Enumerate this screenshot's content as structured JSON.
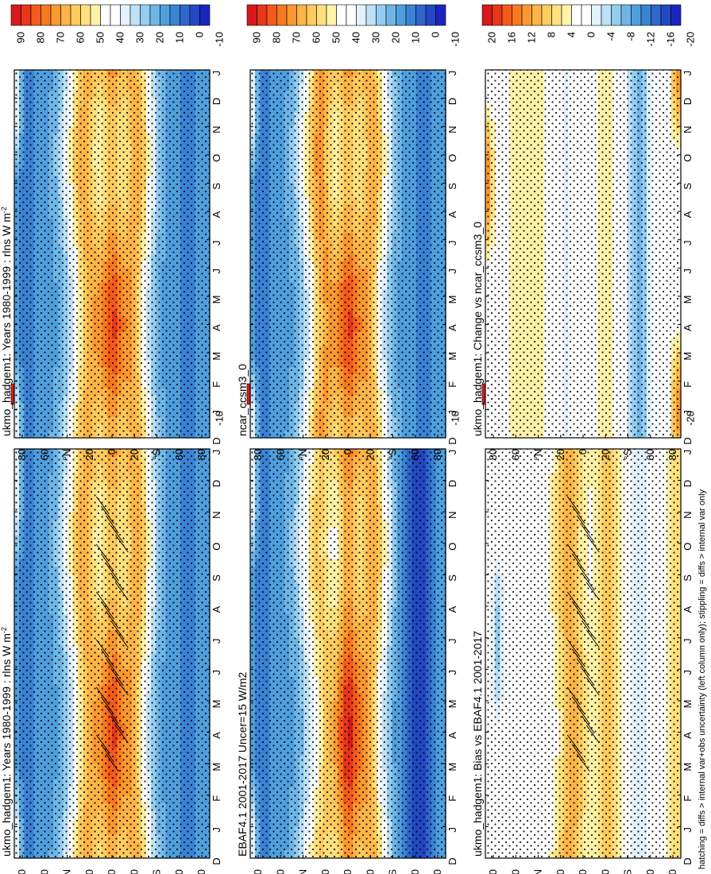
{
  "figure": {
    "footnote": "hatching = diffs > internal var+obs uncertainty (left column only); stippling = diffs > internal var only"
  },
  "chart_data": [
    {
      "type": "heatmap",
      "id": "model-left",
      "title": "ukmo_hadgem1: Years 1980-1999 : rlns W m",
      "title_superscript": "-2",
      "months": [
        "D",
        "J",
        "F",
        "M",
        "A",
        "M",
        "J",
        "J",
        "A",
        "S",
        "O",
        "N",
        "D",
        "J"
      ],
      "lat_ticks": [
        "80",
        "60",
        "°N",
        "20",
        "0",
        "20",
        "°S",
        "60",
        "80"
      ],
      "field": "model",
      "hatching": true,
      "colorbar": {
        "labels": [
          "90",
          "80",
          "70",
          "60",
          "50",
          "40",
          "30",
          "20",
          "10",
          "0",
          "-10"
        ],
        "colors": [
          "#d7191c",
          "#e8361b",
          "#f55a1b",
          "#f9791f",
          "#fb9830",
          "#fdb548",
          "#fdcb5e",
          "#fee17f",
          "#fff2a9",
          "#ffffff",
          "#ffffff",
          "#e3f2fc",
          "#bfe1f7",
          "#94cdf0",
          "#6fb6e8",
          "#4f9fde",
          "#3a83d5",
          "#2f67cc",
          "#2348c4",
          "#1b25bd"
        ]
      }
    },
    {
      "type": "heatmap",
      "id": "obs-left",
      "title": "EBAF4.1 2001-2017 Uncer=15 W/m2",
      "months": [
        "D",
        "J",
        "F",
        "M",
        "A",
        "M",
        "J",
        "J",
        "A",
        "S",
        "O",
        "N",
        "D",
        "J"
      ],
      "lat_ticks": [
        "80",
        "60",
        "°N",
        "20",
        "0",
        "20",
        "°S",
        "60",
        "80"
      ],
      "field": "obs",
      "hatching": false,
      "colorbar": {
        "labels": [
          "90",
          "80",
          "70",
          "60",
          "50",
          "40",
          "30",
          "20",
          "10",
          "0",
          "-10"
        ],
        "colors": [
          "#d7191c",
          "#e8361b",
          "#f55a1b",
          "#f9791f",
          "#fb9830",
          "#fdb548",
          "#fdcb5e",
          "#fee17f",
          "#fff2a9",
          "#ffffff",
          "#ffffff",
          "#e3f2fc",
          "#bfe1f7",
          "#94cdf0",
          "#6fb6e8",
          "#4f9fde",
          "#3a83d5",
          "#2f67cc",
          "#2348c4",
          "#1b25bd"
        ]
      }
    },
    {
      "type": "heatmap",
      "id": "bias-left",
      "title": "ukmo_hadgem1: Bias vs EBAF4.1 2001-2017",
      "months": [
        "D",
        "J",
        "F",
        "M",
        "A",
        "M",
        "J",
        "J",
        "A",
        "S",
        "O",
        "N",
        "D",
        "J"
      ],
      "lat_ticks": [
        "80",
        "60",
        "°N",
        "20",
        "0",
        "20",
        "°S",
        "60",
        "80"
      ],
      "field": "bias",
      "hatching": true,
      "colorbar": {
        "labels": [
          "20",
          "16",
          "12",
          "8",
          "4",
          "0",
          "-4",
          "-8",
          "-12",
          "-16",
          "-20"
        ],
        "colors": [
          "#d7191c",
          "#e8361b",
          "#f55a1b",
          "#f9791f",
          "#fb9830",
          "#fdb548",
          "#fdcb5e",
          "#fee17f",
          "#fff2a9",
          "#ffffff",
          "#ffffff",
          "#e3f2fc",
          "#bfe1f7",
          "#94cdf0",
          "#6fb6e8",
          "#4f9fde",
          "#3a83d5",
          "#2f67cc",
          "#2348c4",
          "#1b25bd"
        ]
      }
    },
    {
      "type": "heatmap",
      "id": "model-right",
      "title": "ukmo_hadgem1: Years 1980-1999 : rlns W m",
      "title_superscript": "-2",
      "months": [
        "D",
        "J",
        "F",
        "M",
        "A",
        "M",
        "J",
        "J",
        "A",
        "S",
        "O",
        "N",
        "D",
        "J"
      ],
      "lat_ticks": [
        "80",
        "60",
        "°N",
        "20",
        "0",
        "20",
        "°S",
        "60",
        "80"
      ],
      "field": "model",
      "hatching": false,
      "colorbar": {
        "labels": [
          "90",
          "80",
          "70",
          "60",
          "50",
          "40",
          "30",
          "20",
          "10",
          "0",
          "-10"
        ],
        "colors": [
          "#d7191c",
          "#e8361b",
          "#f55a1b",
          "#f9791f",
          "#fb9830",
          "#fdb548",
          "#fdcb5e",
          "#fee17f",
          "#fff2a9",
          "#ffffff",
          "#ffffff",
          "#e3f2fc",
          "#bfe1f7",
          "#94cdf0",
          "#6fb6e8",
          "#4f9fde",
          "#3a83d5",
          "#2f67cc",
          "#2348c4",
          "#1b25bd"
        ]
      }
    },
    {
      "type": "heatmap",
      "id": "ref-right",
      "title": "ncar_ccsm3_0",
      "months": [
        "D",
        "J",
        "F",
        "M",
        "A",
        "M",
        "J",
        "J",
        "A",
        "S",
        "O",
        "N",
        "D",
        "J"
      ],
      "lat_ticks": [
        "80",
        "60",
        "°N",
        "20",
        "0",
        "20",
        "°S",
        "60",
        "80"
      ],
      "field": "ref",
      "hatching": false,
      "colorbar": {
        "labels": [
          "90",
          "80",
          "70",
          "60",
          "50",
          "40",
          "30",
          "20",
          "10",
          "0",
          "-10"
        ],
        "colors": [
          "#d7191c",
          "#e8361b",
          "#f55a1b",
          "#f9791f",
          "#fb9830",
          "#fdb548",
          "#fdcb5e",
          "#fee17f",
          "#fff2a9",
          "#ffffff",
          "#ffffff",
          "#e3f2fc",
          "#bfe1f7",
          "#94cdf0",
          "#6fb6e8",
          "#4f9fde",
          "#3a83d5",
          "#2f67cc",
          "#2348c4",
          "#1b25bd"
        ]
      }
    },
    {
      "type": "heatmap",
      "id": "change-right",
      "title": "ukmo_hadgem1: Change vs ncar_ccsm3_0",
      "months": [
        "D",
        "J",
        "F",
        "M",
        "A",
        "M",
        "J",
        "J",
        "A",
        "S",
        "O",
        "N",
        "D",
        "J"
      ],
      "lat_ticks": [
        "80",
        "60",
        "°N",
        "20",
        "0",
        "20",
        "°S",
        "60",
        "80"
      ],
      "field": "change",
      "hatching": false,
      "colorbar": {
        "labels": [
          "20",
          "16",
          "12",
          "8",
          "4",
          "0",
          "-4",
          "-8",
          "-12",
          "-16",
          "-20"
        ],
        "colors": [
          "#d7191c",
          "#e8361b",
          "#f55a1b",
          "#f9791f",
          "#fb9830",
          "#fdb548",
          "#fdcb5e",
          "#fee17f",
          "#fff2a9",
          "#ffffff",
          "#ffffff",
          "#e3f2fc",
          "#bfe1f7",
          "#94cdf0",
          "#6fb6e8",
          "#4f9fde",
          "#3a83d5",
          "#2f67cc",
          "#2348c4",
          "#1b25bd"
        ]
      }
    }
  ]
}
